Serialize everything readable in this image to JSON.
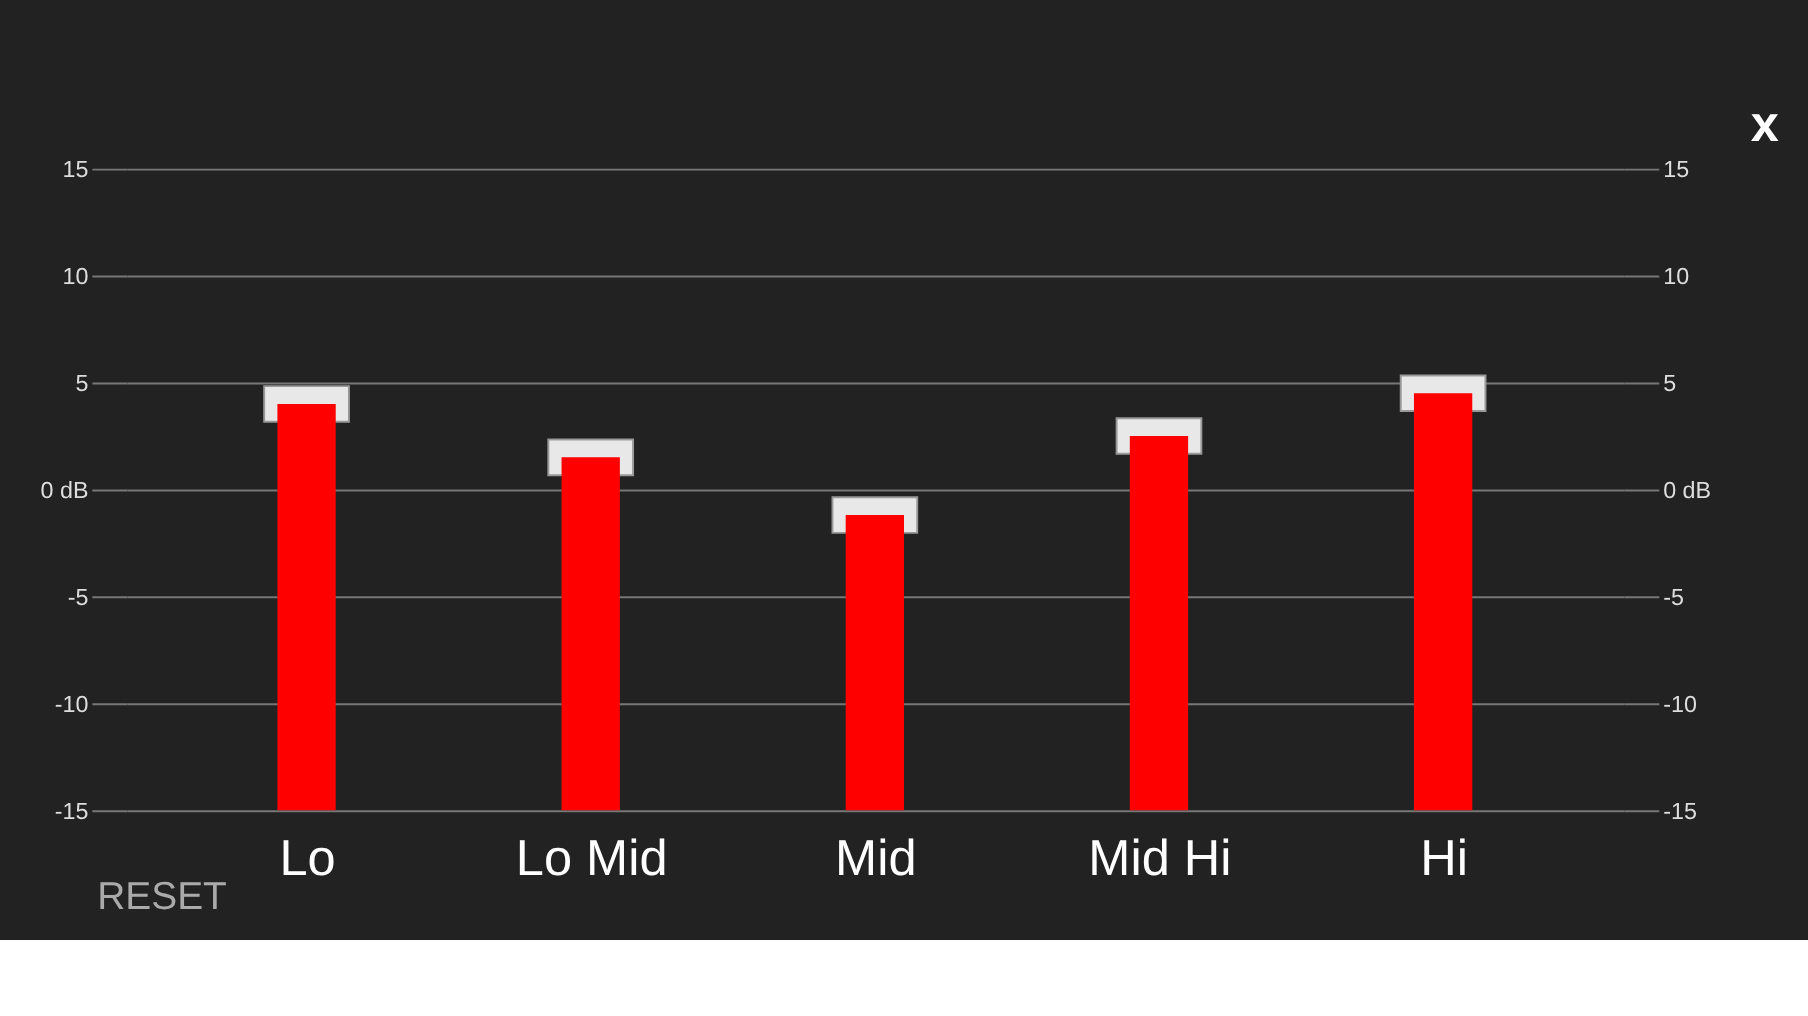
{
  "chart_data": {
    "type": "bar",
    "categories": [
      "Lo",
      "Lo Mid",
      "Mid",
      "Mid Hi",
      "Hi"
    ],
    "series": [
      {
        "color": "#ff0000",
        "base": [
          -15,
          -15,
          -15,
          -15,
          -15
        ],
        "values": [
          19,
          16.5,
          13.8,
          17.5,
          19.5
        ]
      },
      {
        "type": "scatter",
        "x": [
          "Lo",
          "Lo Mid",
          "Mid",
          "Mid Hi",
          "Hi"
        ],
        "color": "#e8e8e8",
        "marker": "square",
        "values": [
          4,
          1.5,
          -1.2,
          2.5,
          4.5
        ]
      }
    ],
    "ylim": [
      -15,
      15
    ],
    "yticks": [
      -15,
      -10,
      -5,
      {
        "value": 0,
        "label": "0 dB"
      },
      5,
      10,
      15
    ],
    "y2lim": [
      -15,
      15
    ],
    "y2ticks": [
      -15,
      -10,
      -5,
      {
        "value": 0,
        "label": "0 dB"
      },
      5,
      10,
      15
    ],
    "grid": "y",
    "annotations": [
      "RESET",
      "x"
    ]
  }
}
